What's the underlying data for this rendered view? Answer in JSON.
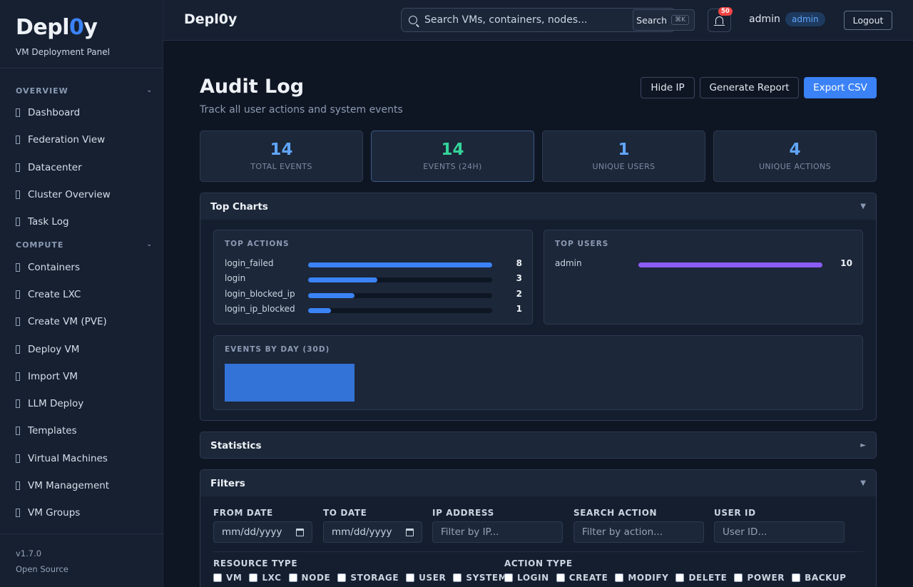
{
  "sidebar": {
    "brand_prefix": "Depl",
    "brand_zero": "0",
    "brand_suffix": "y",
    "subtitle": "VM Deployment Panel",
    "sections": [
      {
        "title": "OVERVIEW",
        "items": [
          "Dashboard",
          "Federation View",
          "Datacenter",
          "Cluster Overview",
          "Task Log"
        ]
      },
      {
        "title": "COMPUTE",
        "items": [
          "Containers",
          "Create LXC",
          "Create VM (PVE)",
          "Deploy VM",
          "Import VM",
          "LLM Deploy",
          "Templates",
          "Virtual Machines",
          "VM Management",
          "VM Groups"
        ]
      }
    ],
    "version": "v1.7.0",
    "license": "Open Source"
  },
  "header": {
    "title": "Depl0y",
    "search_placeholder": "Search VMs, containers, nodes...",
    "search_button": "Search",
    "shortcut": "⌘K",
    "notification_count": "50",
    "user": "admin",
    "role": "admin",
    "logout": "Logout"
  },
  "page": {
    "title": "Audit Log",
    "subtitle": "Track all user actions and system events",
    "buttons": {
      "hide_ip": "Hide IP",
      "report": "Generate Report",
      "export": "Export CSV"
    }
  },
  "stats": [
    {
      "value": "14",
      "label": "TOTAL EVENTS",
      "color": "#60a5fa"
    },
    {
      "value": "14",
      "label": "EVENTS (24H)",
      "color": "#34d399"
    },
    {
      "value": "1",
      "label": "UNIQUE USERS",
      "color": "#60a5fa"
    },
    {
      "value": "4",
      "label": "UNIQUE ACTIONS",
      "color": "#60a5fa"
    }
  ],
  "top_charts": {
    "title": "Top Charts",
    "toggle": "▼",
    "actions_title": "TOP ACTIONS",
    "actions": [
      {
        "name": "login_failed",
        "count": "8",
        "fraction": 1.0
      },
      {
        "name": "login",
        "count": "3",
        "fraction": 0.375
      },
      {
        "name": "login_blocked_ip",
        "count": "2",
        "fraction": 0.25
      },
      {
        "name": "login_ip_blocked",
        "count": "1",
        "fraction": 0.125
      }
    ],
    "users_title": "TOP USERS",
    "users": [
      {
        "name": "admin",
        "count": "10",
        "fraction": 1.0
      }
    ],
    "by_day_title": "EVENTS BY DAY (30D)",
    "accent": "#3b82f6",
    "user_accent": "#8b5cf6"
  },
  "statistics": {
    "title": "Statistics",
    "toggle": "►"
  },
  "filters": {
    "title": "Filters",
    "toggle": "▼",
    "from_date": {
      "label": "FROM DATE",
      "value": "mm/dd/yyyy"
    },
    "to_date": {
      "label": "TO DATE",
      "value": "mm/dd/yyyy"
    },
    "ip": {
      "label": "IP ADDRESS",
      "placeholder": "Filter by IP..."
    },
    "action": {
      "label": "SEARCH ACTION",
      "placeholder": "Filter by action..."
    },
    "user_id": {
      "label": "USER ID",
      "placeholder": "User ID..."
    },
    "resource_type": {
      "label": "RESOURCE TYPE",
      "options": [
        "VM",
        "LXC",
        "NODE",
        "STORAGE",
        "USER",
        "SYSTEM"
      ]
    },
    "action_type": {
      "label": "ACTION TYPE",
      "options": [
        "LOGIN",
        "CREATE",
        "MODIFY",
        "DELETE",
        "POWER",
        "BACKUP"
      ]
    }
  }
}
